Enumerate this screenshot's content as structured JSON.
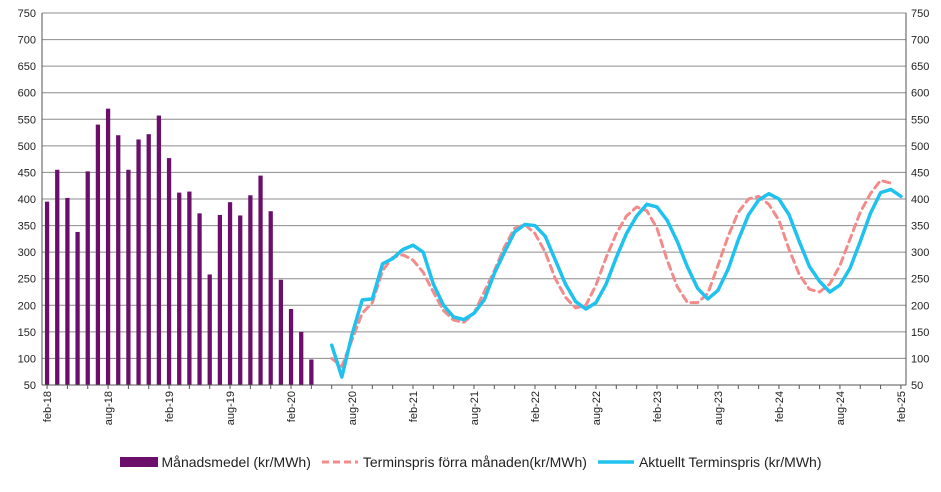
{
  "chart_data": {
    "type": "bar+line",
    "title": "",
    "xlabel": "",
    "ylabel": "",
    "ylim": [
      50,
      750
    ],
    "yticks": [
      50,
      100,
      150,
      200,
      250,
      300,
      350,
      400,
      450,
      500,
      550,
      600,
      650,
      700,
      750
    ],
    "secondary_y": true,
    "grid": "horizontal",
    "legend_position": "bottom",
    "x_start": "2018-02",
    "x_ticks": [
      {
        "month": 0,
        "label": "feb-18"
      },
      {
        "month": 6,
        "label": "aug-18"
      },
      {
        "month": 12,
        "label": "feb-19"
      },
      {
        "month": 18,
        "label": "aug-19"
      },
      {
        "month": 24,
        "label": "feb-20"
      },
      {
        "month": 30,
        "label": "aug-20"
      },
      {
        "month": 36,
        "label": "feb-21"
      },
      {
        "month": 42,
        "label": "aug-21"
      },
      {
        "month": 48,
        "label": "feb-22"
      },
      {
        "month": 54,
        "label": "aug-22"
      },
      {
        "month": 60,
        "label": "feb-23"
      },
      {
        "month": 66,
        "label": "aug-23"
      },
      {
        "month": 72,
        "label": "feb-24"
      },
      {
        "month": 78,
        "label": "aug-24"
      },
      {
        "month": 84,
        "label": "feb-25"
      }
    ],
    "series": [
      {
        "name": "Månadsmedel (kr/MWh)",
        "type": "bar",
        "color": "#6b0f6b",
        "start_month": 0,
        "values": [
          395,
          455,
          402,
          338,
          452,
          540,
          570,
          520,
          455,
          512,
          522,
          557,
          477,
          412,
          414,
          373,
          258,
          370,
          394,
          369,
          407,
          444,
          377,
          248,
          193,
          150,
          98
        ]
      },
      {
        "name": "Terminspris förra månaden(kr/MWh)",
        "type": "line",
        "style": "dashed",
        "color": "#f38b8b",
        "start_month": 28,
        "values": [
          100,
          85,
          135,
          185,
          205,
          265,
          290,
          295,
          285,
          262,
          225,
          190,
          172,
          168,
          185,
          225,
          265,
          310,
          345,
          352,
          335,
          300,
          250,
          215,
          195,
          200,
          238,
          290,
          335,
          368,
          385,
          378,
          345,
          285,
          235,
          205,
          205,
          222,
          275,
          330,
          375,
          400,
          405,
          390,
          360,
          305,
          258,
          230,
          225,
          240,
          275,
          325,
          375,
          410,
          435,
          430
        ]
      },
      {
        "name": "Aktuellt Terminspris (kr/MWh)",
        "type": "line",
        "style": "solid",
        "color": "#1fc1ef",
        "start_month": 28,
        "values": [
          125,
          65,
          145,
          210,
          212,
          278,
          288,
          305,
          313,
          300,
          240,
          200,
          178,
          173,
          185,
          210,
          260,
          300,
          338,
          352,
          350,
          330,
          285,
          240,
          207,
          193,
          205,
          240,
          290,
          335,
          368,
          390,
          385,
          360,
          320,
          272,
          232,
          212,
          228,
          268,
          323,
          370,
          398,
          410,
          400,
          370,
          320,
          273,
          245,
          225,
          238,
          270,
          320,
          373,
          412,
          418,
          405
        ]
      }
    ]
  },
  "legend": {
    "bars_label": "Månadsmedel (kr/MWh)",
    "prev_label": "Terminspris förra månaden(kr/MWh)",
    "current_label": "Aktuellt Terminspris (kr/MWh)"
  }
}
